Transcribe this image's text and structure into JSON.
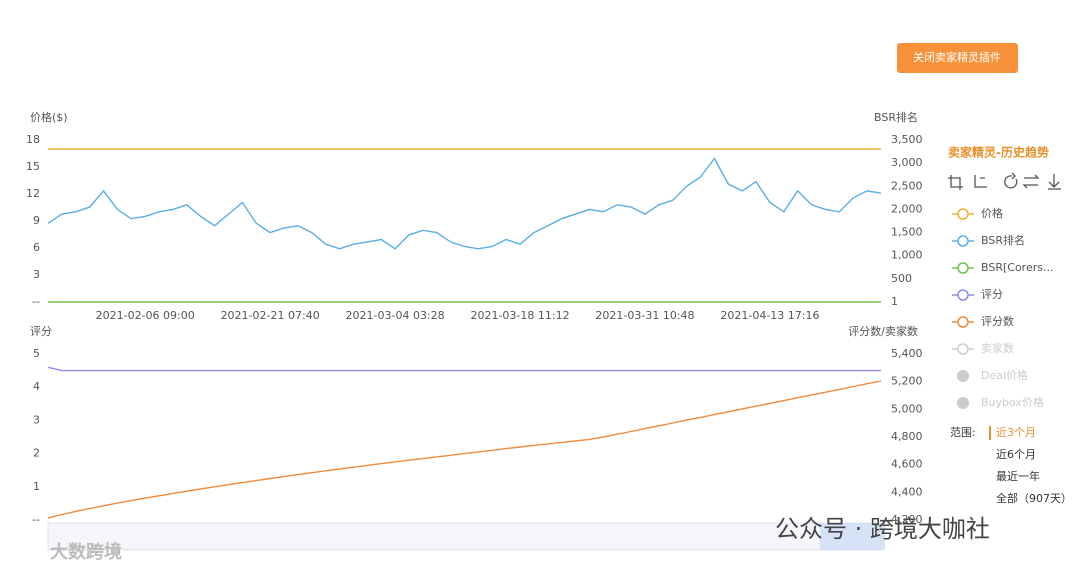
{
  "chart_data": [
    {
      "type": "line",
      "ylabel": "价格($)",
      "y2label": "BSR排名",
      "categories": [
        null,
        null,
        null,
        null,
        null,
        null,
        null,
        "2021-02-06 09:00",
        null,
        null,
        null,
        null,
        null,
        null,
        null,
        null,
        "2021-02-21 07:40",
        null,
        null,
        null,
        null,
        null,
        null,
        null,
        null,
        "2021-03-04 03:28",
        null,
        null,
        null,
        null,
        null,
        null,
        null,
        null,
        "2021-03-18 11:12",
        null,
        null,
        null,
        null,
        null,
        null,
        null,
        null,
        "2021-03-31 10:48",
        null,
        null,
        null,
        null,
        null,
        null,
        null,
        null,
        "2021-04-13 17:16",
        null,
        null,
        null,
        null,
        null,
        null,
        null,
        null
      ],
      "ylim": [
        0,
        18
      ],
      "yticks": [
        {
          "value": 0,
          "label": "--"
        },
        3,
        6,
        9,
        12,
        15,
        18
      ],
      "y2lim": [
        1,
        3500
      ],
      "y2ticks": [
        1,
        500,
        {
          "value": 1000,
          "label": "1,000"
        },
        {
          "value": 1500,
          "label": "1,500"
        },
        {
          "value": 2000,
          "label": "2,000"
        },
        {
          "value": 2500,
          "label": "2,500"
        },
        {
          "value": 3000,
          "label": "3,000"
        },
        {
          "value": 3500,
          "label": "3,500"
        }
      ],
      "series": [
        {
          "name": "价格",
          "color": "#f2b134",
          "values": [
            17,
            17,
            17,
            17,
            17,
            17,
            17,
            17,
            17,
            17,
            17,
            17,
            17,
            17,
            17,
            17,
            17,
            17,
            17,
            17,
            17,
            17,
            17,
            17,
            17,
            17,
            17,
            17,
            17,
            17,
            17,
            17,
            17,
            17,
            17,
            17,
            17,
            17,
            17,
            17,
            17,
            17,
            17,
            17,
            17,
            17,
            17,
            17,
            17,
            17,
            17,
            17,
            17,
            17,
            17,
            17,
            17,
            17,
            17,
            17,
            17
          ]
        },
        {
          "name": "BSR排名",
          "color": "#5aaee6",
          "axis": "y2",
          "values": [
            1700,
            1900,
            1950,
            2050,
            2400,
            2000,
            1800,
            1850,
            1950,
            2000,
            2100,
            1850,
            1650,
            1900,
            2150,
            1700,
            1500,
            1600,
            1650,
            1500,
            1250,
            1150,
            1250,
            1300,
            1350,
            1150,
            1450,
            1550,
            1500,
            1300,
            1200,
            1150,
            1200,
            1350,
            1250,
            1500,
            1650,
            1800,
            1900,
            2000,
            1950,
            2100,
            2050,
            1900,
            2100,
            2200,
            2500,
            2700,
            3100,
            2550,
            2400,
            2600,
            2150,
            1950,
            2400,
            2100,
            2000,
            1950,
            2250,
            2400,
            2350
          ]
        },
        {
          "name": "BSR[Corers...",
          "color": "#74c04c",
          "axis": "y2",
          "values": [
            1,
            1,
            1,
            1,
            1,
            1,
            1,
            1,
            1,
            1,
            1,
            1,
            1,
            1,
            1,
            1,
            1,
            1,
            1,
            1,
            1,
            1,
            1,
            1,
            1,
            1,
            1,
            1,
            1,
            1,
            1,
            1,
            1,
            1,
            1,
            1,
            1,
            1,
            1,
            1,
            1,
            1,
            1,
            1,
            1,
            1,
            1,
            1,
            1,
            1,
            1,
            1,
            1,
            1,
            1,
            1,
            1,
            1,
            1,
            1,
            1
          ]
        }
      ]
    },
    {
      "type": "line",
      "ylabel": "评分",
      "y2label": "评分数/卖家数",
      "ylim": [
        0,
        5
      ],
      "yticks": [
        {
          "value": 0,
          "label": "--"
        },
        1,
        2,
        3,
        4,
        5
      ],
      "y2lim": [
        4200,
        5400
      ],
      "y2ticks": [
        {
          "value": 4200,
          "label": "4,200"
        },
        {
          "value": 4400,
          "label": "4,400"
        },
        {
          "value": 4600,
          "label": "4,600"
        },
        {
          "value": 4800,
          "label": "4,800"
        },
        {
          "value": 5000,
          "label": "5,000"
        },
        {
          "value": 5200,
          "label": "5,200"
        },
        {
          "value": 5400,
          "label": "5,400"
        }
      ],
      "series": [
        {
          "name": "评分",
          "color": "#8c8ce6",
          "values": [
            4.6,
            4.5,
            4.5,
            4.5,
            4.5,
            4.5,
            4.5,
            4.5,
            4.5,
            4.5,
            4.5,
            4.5,
            4.5,
            4.5,
            4.5,
            4.5,
            4.5,
            4.5,
            4.5,
            4.5,
            4.5,
            4.5,
            4.5,
            4.5,
            4.5,
            4.5,
            4.5,
            4.5,
            4.5,
            4.5,
            4.5,
            4.5,
            4.5,
            4.5,
            4.5,
            4.5,
            4.5,
            4.5,
            4.5,
            4.5,
            4.5,
            4.5,
            4.5,
            4.5,
            4.5,
            4.5,
            4.5,
            4.5,
            4.5,
            4.5,
            4.5,
            4.5,
            4.5,
            4.5,
            4.5,
            4.5,
            4.5,
            4.5,
            4.5,
            4.5,
            4.5
          ]
        },
        {
          "name": "评分数",
          "color": "#ef8a3e",
          "axis": "y2",
          "values": [
            4215,
            4240,
            4262,
            4283,
            4303,
            4322,
            4340,
            4358,
            4375,
            4392,
            4408,
            4424,
            4440,
            4455,
            4470,
            4485,
            4500,
            4514,
            4528,
            4542,
            4556,
            4569,
            4582,
            4595,
            4608,
            4620,
            4632,
            4644,
            4656,
            4668,
            4680,
            4692,
            4704,
            4716,
            4728,
            4739,
            4750,
            4761,
            4772,
            4783,
            4800,
            4820,
            4840,
            4861,
            4881,
            4901,
            4922,
            4942,
            4962,
            4982,
            5003,
            5023,
            5043,
            5063,
            5084,
            5104,
            5124,
            5144,
            5165,
            5185,
            5205
          ]
        }
      ]
    }
  ],
  "button": "关闭卖家精灵插件",
  "panel": {
    "title": "卖家精灵-历史趋势",
    "inactive_legend": [
      "卖家数",
      "Deal价格",
      "Buybox价格"
    ],
    "range_label": "范围:",
    "range_options": [
      "近3个月",
      "近6个月",
      "最近一年",
      "全部（907天）"
    ],
    "range_selected": 0
  },
  "watermarks": [
    "公众号 · 跨境大咖社",
    "大数跨境"
  ]
}
